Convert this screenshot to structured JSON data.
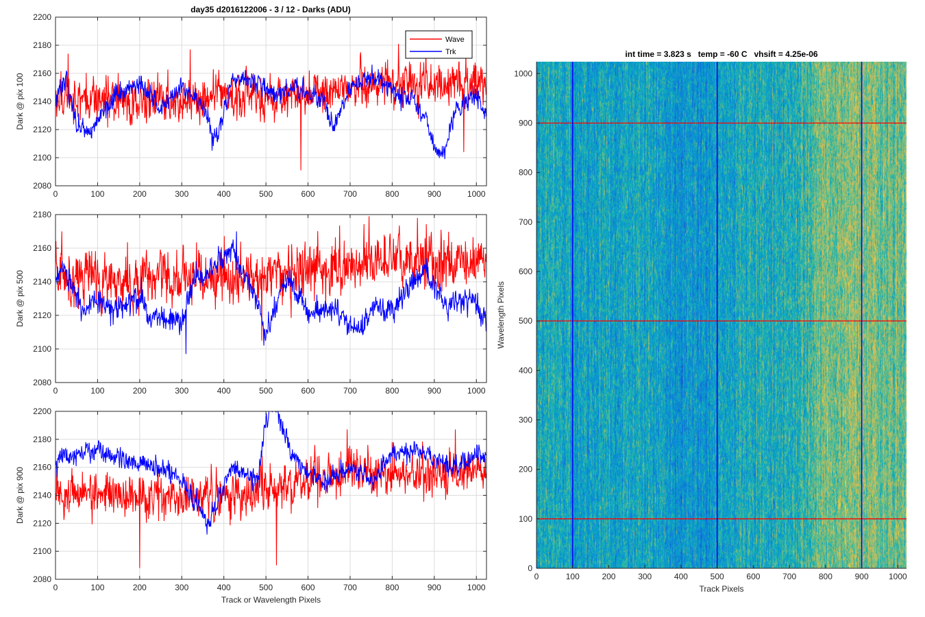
{
  "figure": {
    "title": "day35 d2016122006 - 3 / 12 - Darks (ADU)"
  },
  "legend": {
    "placement": "top-right of first panel",
    "items": [
      {
        "name": "Wave",
        "color": "#ff0000"
      },
      {
        "name": "Trk",
        "color": "#0000ff"
      }
    ]
  },
  "chart_data": [
    {
      "type": "line",
      "id": "panel1",
      "title": "day35 d2016122006 - 3 / 12 - Darks (ADU)",
      "xlabel": "",
      "ylabel": "Dark @ pix 100",
      "xlim": [
        0,
        1024
      ],
      "ylim": [
        2080,
        2200
      ],
      "xticks": [
        0,
        100,
        200,
        300,
        400,
        500,
        600,
        700,
        800,
        900,
        1000
      ],
      "yticks": [
        2080,
        2100,
        2120,
        2140,
        2160,
        2180,
        2200
      ],
      "grid": true,
      "series": [
        {
          "name": "Wave",
          "color": "#ff0000",
          "mean_profile": [
            [
              0,
              2143
            ],
            [
              200,
              2140
            ],
            [
              400,
              2143
            ],
            [
              500,
              2143
            ],
            [
              600,
              2146
            ],
            [
              700,
              2150
            ],
            [
              800,
              2152
            ],
            [
              1024,
              2153
            ]
          ],
          "noise": 11,
          "spikes": [
            [
              583,
              2091
            ],
            [
              320,
              2177
            ],
            [
              815,
              2181
            ],
            [
              880,
              2176
            ],
            [
              970,
              2104
            ],
            [
              30,
              2174
            ]
          ]
        },
        {
          "name": "Trk",
          "color": "#0000ff",
          "mean_profile": [
            [
              0,
              2140
            ],
            [
              25,
              2155
            ],
            [
              50,
              2125
            ],
            [
              80,
              2118
            ],
            [
              120,
              2135
            ],
            [
              150,
              2145
            ],
            [
              200,
              2153
            ],
            [
              250,
              2135
            ],
            [
              300,
              2148
            ],
            [
              350,
              2138
            ],
            [
              380,
              2112
            ],
            [
              420,
              2155
            ],
            [
              450,
              2158
            ],
            [
              490,
              2150
            ],
            [
              520,
              2145
            ],
            [
              560,
              2150
            ],
            [
              600,
              2147
            ],
            [
              640,
              2138
            ],
            [
              660,
              2120
            ],
            [
              700,
              2150
            ],
            [
              750,
              2158
            ],
            [
              800,
              2148
            ],
            [
              850,
              2140
            ],
            [
              880,
              2128
            ],
            [
              900,
              2108
            ],
            [
              920,
              2100
            ],
            [
              950,
              2135
            ],
            [
              1000,
              2145
            ],
            [
              1024,
              2130
            ]
          ],
          "noise": 5,
          "spikes": [
            [
              925,
              2099
            ],
            [
              372,
              2105
            ]
          ]
        }
      ]
    },
    {
      "type": "line",
      "id": "panel2",
      "title": "",
      "xlabel": "",
      "ylabel": "Dark @ pix 500",
      "xlim": [
        0,
        1024
      ],
      "ylim": [
        2080,
        2180
      ],
      "xticks": [
        0,
        100,
        200,
        300,
        400,
        500,
        600,
        700,
        800,
        900,
        1000
      ],
      "yticks": [
        2080,
        2100,
        2120,
        2140,
        2160,
        2180
      ],
      "grid": true,
      "series": [
        {
          "name": "Wave",
          "color": "#ff0000",
          "mean_profile": [
            [
              0,
              2145
            ],
            [
              200,
              2140
            ],
            [
              400,
              2142
            ],
            [
              500,
              2143
            ],
            [
              600,
              2146
            ],
            [
              700,
              2150
            ],
            [
              800,
              2154
            ],
            [
              1024,
              2153
            ]
          ],
          "noise": 11,
          "spikes": [
            [
              745,
              2179
            ],
            [
              860,
              2178
            ],
            [
              15,
              2170
            ],
            [
              490,
              2105
            ]
          ]
        },
        {
          "name": "Trk",
          "color": "#0000ff",
          "mean_profile": [
            [
              0,
              2140
            ],
            [
              20,
              2148
            ],
            [
              60,
              2125
            ],
            [
              100,
              2128
            ],
            [
              150,
              2125
            ],
            [
              200,
              2130
            ],
            [
              220,
              2120
            ],
            [
              260,
              2118
            ],
            [
              300,
              2115
            ],
            [
              330,
              2140
            ],
            [
              380,
              2148
            ],
            [
              420,
              2160
            ],
            [
              440,
              2145
            ],
            [
              470,
              2135
            ],
            [
              490,
              2118
            ],
            [
              500,
              2105
            ],
            [
              540,
              2140
            ],
            [
              560,
              2140
            ],
            [
              600,
              2120
            ],
            [
              660,
              2125
            ],
            [
              700,
              2115
            ],
            [
              720,
              2110
            ],
            [
              760,
              2125
            ],
            [
              800,
              2122
            ],
            [
              850,
              2140
            ],
            [
              880,
              2148
            ],
            [
              930,
              2125
            ],
            [
              980,
              2130
            ],
            [
              1024,
              2115
            ]
          ],
          "noise": 5,
          "spikes": [
            [
              310,
              2097
            ],
            [
              430,
              2170
            ],
            [
              495,
              2102
            ]
          ]
        }
      ]
    },
    {
      "type": "line",
      "id": "panel3",
      "title": "",
      "xlabel": "Track or Wavelength Pixels",
      "ylabel": "Dark @ pix 900",
      "xlim": [
        0,
        1024
      ],
      "ylim": [
        2080,
        2200
      ],
      "xticks": [
        0,
        100,
        200,
        300,
        400,
        500,
        600,
        700,
        800,
        900,
        1000
      ],
      "yticks": [
        2080,
        2100,
        2120,
        2140,
        2160,
        2180,
        2200
      ],
      "grid": true,
      "series": [
        {
          "name": "Wave",
          "color": "#ff0000",
          "mean_profile": [
            [
              0,
              2143
            ],
            [
              200,
              2140
            ],
            [
              400,
              2140
            ],
            [
              500,
              2143
            ],
            [
              600,
              2150
            ],
            [
              700,
              2155
            ],
            [
              800,
              2155
            ],
            [
              1024,
              2155
            ]
          ],
          "noise": 11,
          "spikes": [
            [
              200,
              2088
            ],
            [
              525,
              2090
            ],
            [
              950,
              2187
            ],
            [
              800,
              2178
            ]
          ]
        },
        {
          "name": "Trk",
          "color": "#0000ff",
          "mean_profile": [
            [
              0,
              2165
            ],
            [
              60,
              2170
            ],
            [
              100,
              2172
            ],
            [
              150,
              2168
            ],
            [
              200,
              2162
            ],
            [
              260,
              2160
            ],
            [
              300,
              2150
            ],
            [
              340,
              2130
            ],
            [
              360,
              2120
            ],
            [
              400,
              2148
            ],
            [
              420,
              2160
            ],
            [
              440,
              2158
            ],
            [
              480,
              2150
            ],
            [
              500,
              2195
            ],
            [
              515,
              2210
            ],
            [
              560,
              2170
            ],
            [
              600,
              2155
            ],
            [
              640,
              2150
            ],
            [
              700,
              2160
            ],
            [
              750,
              2150
            ],
            [
              800,
              2170
            ],
            [
              850,
              2172
            ],
            [
              900,
              2165
            ],
            [
              950,
              2160
            ],
            [
              1000,
              2170
            ],
            [
              1024,
              2168
            ]
          ],
          "noise": 5,
          "spikes": [
            [
              510,
              2218
            ],
            [
              360,
              2112
            ]
          ]
        }
      ]
    },
    {
      "type": "heatmap",
      "id": "panel4",
      "title": "int time = 3.823 s   temp = -60 C   vhsift = 4.25e-06",
      "xlabel": "Track Pixels",
      "ylabel": "Wavelength Pixels",
      "xlim": [
        0,
        1024
      ],
      "ylim": [
        0,
        1024
      ],
      "xticks": [
        0,
        100,
        200,
        300,
        400,
        500,
        600,
        700,
        800,
        900,
        1000
      ],
      "yticks": [
        0,
        100,
        200,
        300,
        400,
        500,
        600,
        700,
        800,
        900,
        1000
      ],
      "colormap": "parula",
      "column_trend": [
        [
          0,
          0.5
        ],
        [
          100,
          0.46
        ],
        [
          300,
          0.47
        ],
        [
          450,
          0.38
        ],
        [
          550,
          0.47
        ],
        [
          650,
          0.5
        ],
        [
          720,
          0.52
        ],
        [
          800,
          0.66
        ],
        [
          860,
          0.68
        ],
        [
          950,
          0.65
        ],
        [
          1024,
          0.62
        ]
      ],
      "vertical_markers": {
        "color": "#0000ff",
        "x": [
          100,
          500,
          900
        ]
      },
      "horizontal_markers": {
        "color": "#ff0000",
        "y": [
          100,
          500,
          900
        ]
      }
    }
  ]
}
